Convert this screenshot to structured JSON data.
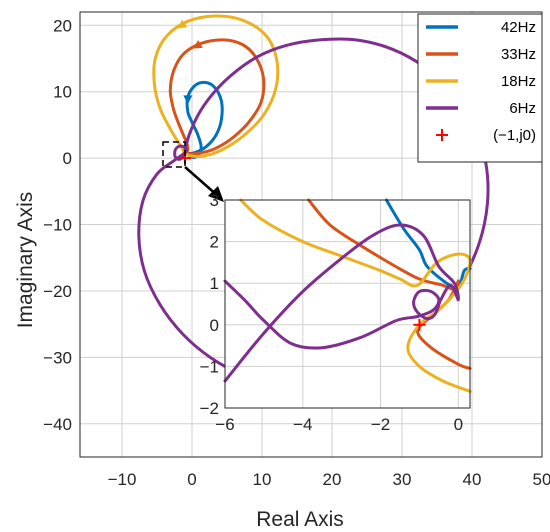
{
  "chart_data": [
    {
      "type": "line",
      "xlabel": "Real Axis",
      "ylabel": "Imaginary Axis",
      "xlim": [
        -16,
        50
      ],
      "ylim": [
        -45,
        22
      ],
      "xticks": [
        -10,
        0,
        10,
        20,
        30,
        40,
        50
      ],
      "yticks": [
        -40,
        -30,
        -20,
        -10,
        0,
        10,
        20
      ],
      "xtick_labels": [
        "−10",
        "0",
        "10",
        "20",
        "30",
        "40",
        "50"
      ],
      "ytick_labels": [
        "−40",
        "−30",
        "−20",
        "−10",
        "0",
        "10",
        "20"
      ],
      "grid": true,
      "legend_position": "top-right",
      "series": [
        {
          "name": "42Hz",
          "color": "#0072BD",
          "points": [
            [
              -1.2,
              1.0
            ],
            [
              -0.5,
              0.7
            ],
            [
              0.6,
              0.9
            ],
            [
              2.0,
              1.7
            ],
            [
              3.4,
              3.4
            ],
            [
              4.2,
              5.8
            ],
            [
              4.2,
              8.6
            ],
            [
              3.2,
              10.7
            ],
            [
              1.8,
              11.4
            ],
            [
              0.4,
              10.9
            ],
            [
              -0.6,
              9.2
            ],
            [
              -0.6,
              7.0
            ],
            [
              0.0,
              5.4
            ],
            [
              0.8,
              3.6
            ],
            [
              1.3,
              1.8
            ],
            [
              1.0,
              0.6
            ],
            [
              0.2,
              0.1
            ],
            [
              -0.6,
              0.5
            ],
            [
              -1.2,
              1.0
            ]
          ]
        },
        {
          "name": "33Hz",
          "color": "#D95319",
          "points": [
            [
              -1.2,
              1.0
            ],
            [
              -0.6,
              0.7
            ],
            [
              0.8,
              0.7
            ],
            [
              3.0,
              1.3
            ],
            [
              5.6,
              2.9
            ],
            [
              8.1,
              5.4
            ],
            [
              9.9,
              8.5
            ],
            [
              10.2,
              12.1
            ],
            [
              9.1,
              15.2
            ],
            [
              7.2,
              17.1
            ],
            [
              4.5,
              17.8
            ],
            [
              1.4,
              17.3
            ],
            [
              -1.2,
              15.7
            ],
            [
              -2.6,
              13.2
            ],
            [
              -3.1,
              10.2
            ],
            [
              -2.6,
              7.2
            ],
            [
              -1.6,
              4.4
            ],
            [
              -0.8,
              2.4
            ],
            [
              -0.6,
              1.2
            ],
            [
              -1.2,
              1.0
            ]
          ]
        },
        {
          "name": "18Hz",
          "color": "#EDB120",
          "points": [
            [
              -1.2,
              1.0
            ],
            [
              -0.4,
              0.4
            ],
            [
              1.5,
              0.3
            ],
            [
              4.2,
              1.2
            ],
            [
              7.4,
              3.4
            ],
            [
              10.3,
              6.6
            ],
            [
              12.0,
              10.6
            ],
            [
              12.1,
              14.8
            ],
            [
              10.6,
              18.4
            ],
            [
              7.4,
              20.7
            ],
            [
              3.4,
              21.4
            ],
            [
              -0.6,
              20.6
            ],
            [
              -3.6,
              18.4
            ],
            [
              -5.2,
              15.2
            ],
            [
              -5.4,
              11.4
            ],
            [
              -4.6,
              7.6
            ],
            [
              -3.0,
              4.2
            ],
            [
              -1.6,
              1.8
            ],
            [
              -1.0,
              0.8
            ],
            [
              -1.2,
              1.0
            ]
          ]
        },
        {
          "name": "6Hz",
          "color": "#7E2F8E",
          "points": [
            [
              -1.0,
              1.2
            ],
            [
              -0.3,
              3.8
            ],
            [
              1.2,
              7.1
            ],
            [
              3.4,
              10.2
            ],
            [
              6.2,
              13.0
            ],
            [
              9.6,
              15.4
            ],
            [
              13.6,
              17.0
            ],
            [
              18.2,
              17.8
            ],
            [
              23.4,
              17.8
            ],
            [
              28.6,
              16.4
            ],
            [
              33.4,
              13.6
            ],
            [
              37.4,
              9.7
            ],
            [
              40.4,
              4.8
            ],
            [
              42.0,
              -0.9
            ],
            [
              42.2,
              -6.9
            ],
            [
              41.0,
              -12.9
            ],
            [
              38.4,
              -18.7
            ],
            [
              34.4,
              -24.0
            ],
            [
              29.4,
              -28.4
            ],
            [
              23.8,
              -31.6
            ],
            [
              18.0,
              -33.4
            ],
            [
              12.4,
              -33.8
            ],
            [
              7.2,
              -32.6
            ],
            [
              2.6,
              -30.0
            ],
            [
              -1.4,
              -26.4
            ],
            [
              -4.6,
              -22.0
            ],
            [
              -6.8,
              -17.0
            ],
            [
              -7.6,
              -11.6
            ],
            [
              -7.0,
              -6.4
            ],
            [
              -5.0,
              -2.4
            ],
            [
              -2.6,
              -0.4
            ],
            [
              -0.9,
              0.9
            ],
            [
              -1.0,
              1.6
            ],
            [
              -1.8,
              1.8
            ],
            [
              -2.4,
              1.2
            ],
            [
              -2.4,
              0.2
            ],
            [
              -1.8,
              -0.2
            ],
            [
              -1.2,
              0.3
            ],
            [
              -1.0,
              0.8
            ]
          ]
        }
      ],
      "markers": [
        {
          "name": "(−1,j0)",
          "x": -1,
          "y": 0,
          "symbol": "plus",
          "color": "#FF0000"
        }
      ]
    },
    {
      "type": "line",
      "role": "inset",
      "xlim": [
        -6,
        0.3
      ],
      "ylim": [
        -2,
        3
      ],
      "xticks": [
        -6,
        -4,
        -2,
        0
      ],
      "yticks": [
        -2,
        -1,
        0,
        1,
        2,
        3
      ],
      "xtick_labels": [
        "−6",
        "−4",
        "−2",
        "0"
      ],
      "ytick_labels": [
        "−2",
        "−1",
        "0",
        "1",
        "2",
        "3"
      ],
      "grid": true,
      "series": [
        {
          "name": "42Hz",
          "color": "#0072BD",
          "points": [
            [
              -1.85,
              3.0
            ],
            [
              -1.4,
              2.3
            ],
            [
              -1.0,
              1.8
            ],
            [
              -0.8,
              1.4
            ],
            [
              -0.3,
              1.0
            ],
            [
              0.0,
              0.9
            ],
            [
              0.15,
              1.3
            ],
            [
              0.3,
              1.35
            ]
          ]
        },
        {
          "name": "33Hz",
          "color": "#D95319",
          "points": [
            [
              -3.85,
              3.0
            ],
            [
              -3.3,
              2.4
            ],
            [
              -2.5,
              1.9
            ],
            [
              -1.7,
              1.45
            ],
            [
              -1.0,
              1.1
            ],
            [
              -0.4,
              0.95
            ],
            [
              -0.1,
              0.85
            ],
            [
              0.0,
              1.05
            ],
            [
              -0.25,
              0.6
            ],
            [
              -0.7,
              0.2
            ],
            [
              -1.05,
              -0.15
            ],
            [
              -0.7,
              -0.55
            ],
            [
              0.0,
              -0.95
            ],
            [
              0.3,
              -1.05
            ]
          ]
        },
        {
          "name": "18Hz",
          "color": "#EDB120",
          "points": [
            [
              -5.6,
              3.0
            ],
            [
              -5.0,
              2.5
            ],
            [
              -4.0,
              2.0
            ],
            [
              -3.0,
              1.65
            ],
            [
              -2.0,
              1.3
            ],
            [
              -1.5,
              1.1
            ],
            [
              -1.05,
              0.95
            ],
            [
              -0.55,
              1.5
            ],
            [
              0.0,
              1.7
            ],
            [
              0.3,
              1.55
            ],
            [
              0.1,
              1.0
            ],
            [
              -0.45,
              0.4
            ],
            [
              -1.0,
              0.0
            ],
            [
              -1.3,
              -0.55
            ],
            [
              -1.0,
              -1.0
            ],
            [
              -0.4,
              -1.35
            ],
            [
              0.3,
              -1.6
            ]
          ]
        },
        {
          "name": "6Hz",
          "color": "#7E2F8E",
          "points": [
            [
              -6.0,
              -1.35
            ],
            [
              -5.0,
              -0.2
            ],
            [
              -4.0,
              0.8
            ],
            [
              -3.0,
              1.6
            ],
            [
              -2.2,
              2.15
            ],
            [
              -1.5,
              2.4
            ],
            [
              -0.9,
              2.15
            ],
            [
              -0.5,
              1.4
            ],
            [
              -0.1,
              1.0
            ],
            [
              0.0,
              0.6
            ],
            [
              -0.2,
              0.95
            ],
            [
              -0.45,
              0.6
            ],
            [
              -0.6,
              0.25
            ],
            [
              -0.8,
              0.15
            ],
            [
              -1.05,
              0.3
            ],
            [
              -1.15,
              0.55
            ],
            [
              -1.0,
              0.8
            ],
            [
              -0.7,
              0.8
            ],
            [
              -0.5,
              0.6
            ],
            [
              -0.65,
              0.35
            ],
            [
              -1.05,
              0.2
            ],
            [
              -1.6,
              0.1
            ],
            [
              -2.5,
              -0.3
            ],
            [
              -3.5,
              -0.55
            ],
            [
              -4.3,
              -0.45
            ],
            [
              -5.0,
              0.1
            ],
            [
              -5.5,
              0.6
            ],
            [
              -6.0,
              1.05
            ]
          ]
        }
      ],
      "markers": [
        {
          "name": "(−1,j0)",
          "x": -1,
          "y": 0,
          "symbol": "plus",
          "color": "#FF0000"
        }
      ]
    }
  ],
  "legend": {
    "entries": [
      {
        "label": "42Hz",
        "color": "#0072BD",
        "symbol": "line"
      },
      {
        "label": "33Hz",
        "color": "#D95319",
        "symbol": "line"
      },
      {
        "label": "18Hz",
        "color": "#EDB120",
        "symbol": "line"
      },
      {
        "label": "6Hz",
        "color": "#7E2F8E",
        "symbol": "line"
      },
      {
        "label": "(−1,j0)",
        "color": "#FF0000",
        "symbol": "plus"
      }
    ]
  },
  "colors": {
    "axes": "#262626",
    "grid": "#D0D0D0",
    "background": "#FFFFFF",
    "zoom_box": "#000000"
  }
}
